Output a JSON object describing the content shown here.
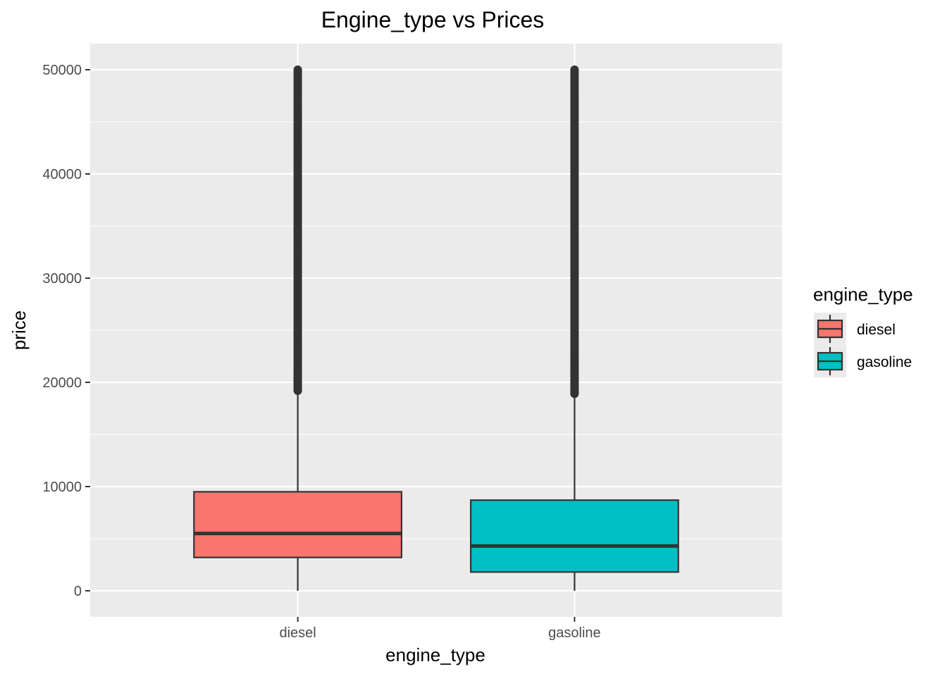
{
  "chart_data": {
    "type": "boxplot",
    "title": "Engine_type vs Prices",
    "xlabel": "engine_type",
    "ylabel": "price",
    "categories": [
      "diesel",
      "gasoline"
    ],
    "ylim": [
      -2500,
      52500
    ],
    "yticks": [
      0,
      10000,
      20000,
      30000,
      40000,
      50000
    ],
    "yticks_labels": [
      "0",
      "10000",
      "20000",
      "30000",
      "40000",
      "50000"
    ],
    "grid": true,
    "legend": {
      "title": "engine_type",
      "position": "right",
      "entries": [
        "diesel",
        "gasoline"
      ]
    },
    "boxes": [
      {
        "name": "diesel",
        "color": "#F8766D",
        "min": 0,
        "q1": 3200,
        "median": 5500,
        "q3": 9500,
        "whisker_high": 19200,
        "outlier_range": [
          19200,
          50000
        ]
      },
      {
        "name": "gasoline",
        "color": "#00BFC4",
        "min": 0,
        "q1": 1800,
        "median": 4300,
        "q3": 8700,
        "whisker_high": 18900,
        "outlier_range": [
          18900,
          50000
        ]
      }
    ],
    "panel_background": "#EBEBEB",
    "grid_color": "#FFFFFF",
    "line_color": "#333333"
  }
}
